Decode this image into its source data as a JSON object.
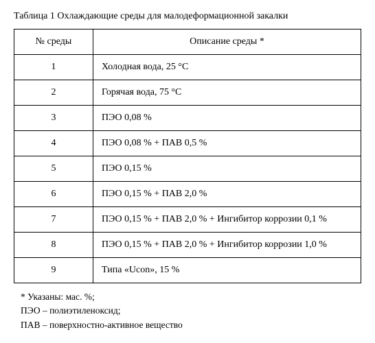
{
  "title": "Таблица 1 Охлаждающие среды для малодеформационной закалки",
  "table": {
    "headers": {
      "num": "№ среды",
      "desc": "Описание среды *"
    },
    "rows": [
      {
        "num": "1",
        "desc": "Холодная вода, 25 °C"
      },
      {
        "num": "2",
        "desc": "Горячая вода, 75 °C"
      },
      {
        "num": "3",
        "desc": "ПЭО 0,08 %"
      },
      {
        "num": "4",
        "desc": "ПЭО 0,08 % + ПАВ 0,5 %"
      },
      {
        "num": "5",
        "desc": "ПЭО 0,15 %"
      },
      {
        "num": "6",
        "desc": "ПЭО 0,15 % + ПАВ 2,0 %"
      },
      {
        "num": "7",
        "desc": "ПЭО 0,15 % + ПАВ 2,0 % + Ингибитор коррозии 0,1 %"
      },
      {
        "num": "8",
        "desc": "ПЭО 0,15 % + ПАВ 2,0 % + Ингибитор коррозии 1,0 %"
      },
      {
        "num": "9",
        "desc": "Типа «Ucon», 15 %"
      }
    ]
  },
  "footnotes": [
    "* Указаны: мас. %;",
    "ПЭО – полиэтиленоксид;",
    "ПАВ – поверхностно-активное вещество"
  ]
}
